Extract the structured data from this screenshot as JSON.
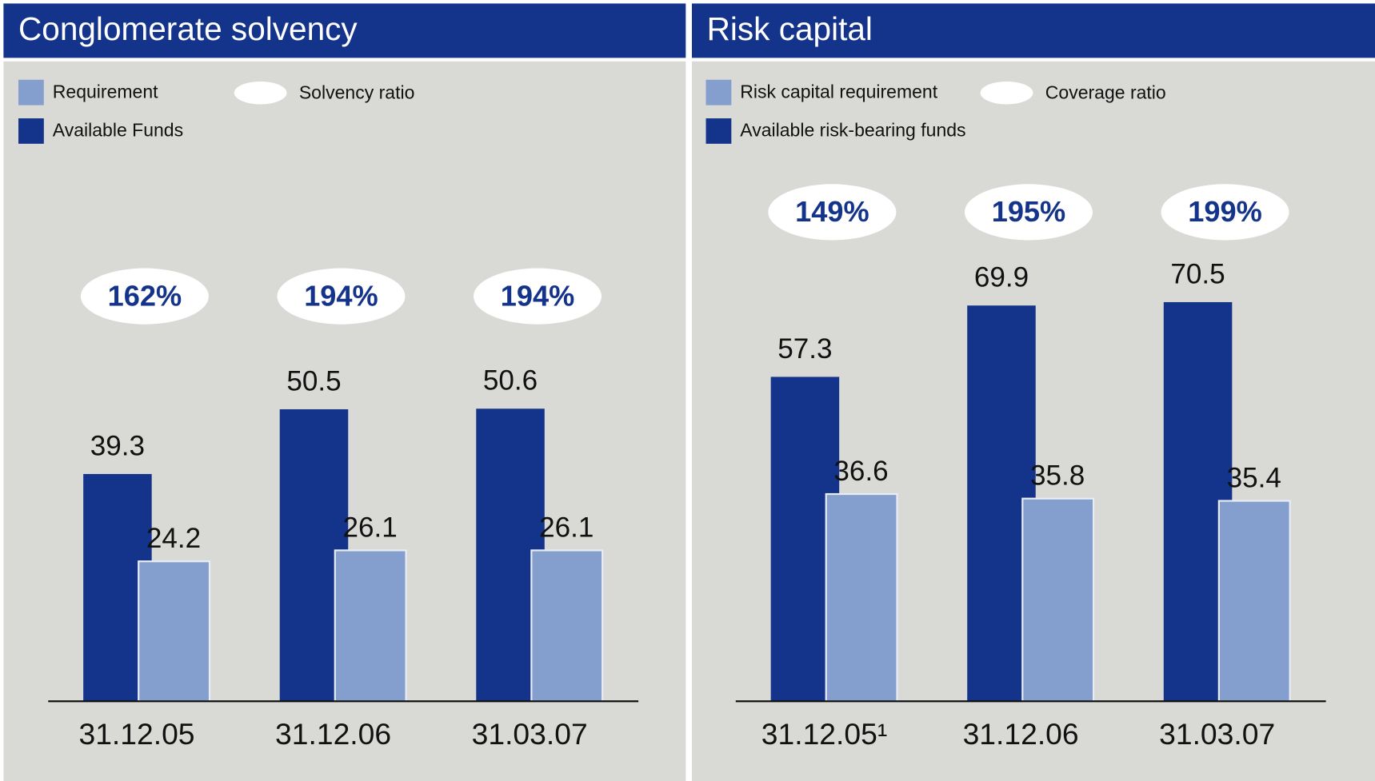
{
  "chart_data": [
    {
      "type": "bar",
      "title": "Conglomerate solvency",
      "categories": [
        "31.12.05",
        "31.12.06",
        "31.03.07"
      ],
      "series": [
        {
          "name": "Available Funds",
          "color": "#14338a",
          "values": [
            39.3,
            50.5,
            50.6
          ]
        },
        {
          "name": "Requirement",
          "color": "#849fcd",
          "values": [
            24.2,
            26.1,
            26.1
          ]
        }
      ],
      "ratio": {
        "name": "Solvency ratio",
        "values": [
          162,
          194,
          194
        ],
        "value_labels": [
          "162%",
          "194%",
          "194%"
        ]
      },
      "ylim": [
        0,
        94
      ]
    },
    {
      "type": "bar",
      "title": "Risk capital",
      "categories": [
        "31.12.05¹",
        "31.12.06",
        "31.03.07"
      ],
      "series": [
        {
          "name": "Available risk-bearing funds",
          "color": "#14338a",
          "values": [
            57.3,
            69.9,
            70.5
          ]
        },
        {
          "name": "Risk capital requirement",
          "color": "#849fcd",
          "values": [
            36.6,
            35.8,
            35.4
          ]
        }
      ],
      "ratio": {
        "name": "Coverage ratio",
        "values": [
          149,
          195,
          199
        ],
        "value_labels": [
          "149%",
          "195%",
          "199%"
        ]
      },
      "ylim": [
        0,
        96
      ]
    }
  ]
}
